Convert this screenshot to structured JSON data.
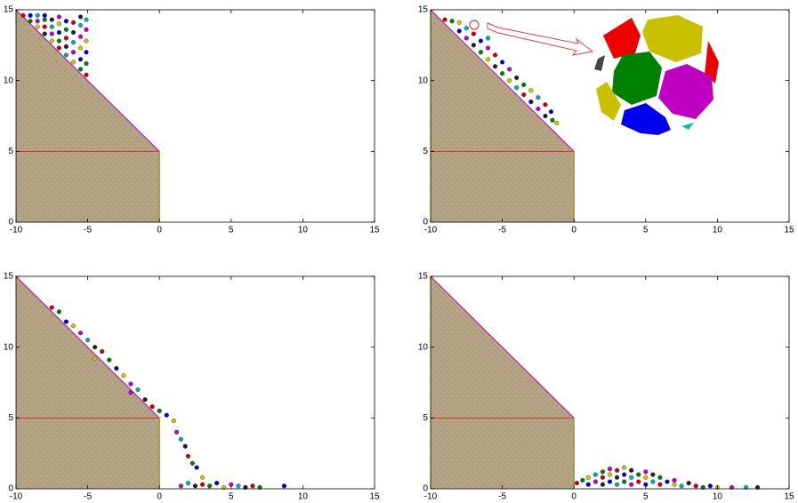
{
  "chart_data": [
    {
      "type": "scatter",
      "xlim": [
        -10,
        15
      ],
      "ylim": [
        0,
        15
      ],
      "xticks": [
        -10,
        -5,
        0,
        5,
        10,
        15
      ],
      "yticks": [
        0,
        5,
        10,
        15
      ],
      "palette": [
        "#d00000",
        "#008000",
        "#0000d0",
        "#c8c800",
        "#c000c0",
        "#00b0b0",
        "#202020"
      ],
      "ramp": {
        "x": [
          -10,
          -10,
          0,
          0
        ],
        "y": [
          0,
          15,
          5,
          0
        ],
        "color": "#b5a584"
      },
      "x": [
        -9.5,
        -9,
        -9,
        -8.5,
        -8.5,
        -8.5,
        -8,
        -8,
        -8,
        -8,
        -7.5,
        -7.5,
        -7.5,
        -7.5,
        -7,
        -7,
        -7,
        -7,
        -7,
        -6.5,
        -6.5,
        -6.5,
        -6.5,
        -6.5,
        -6,
        -6,
        -6,
        -6,
        -6,
        -5.5,
        -5.5,
        -5.5,
        -5.5,
        -5.5,
        -5.5,
        -5.1,
        -5.1,
        -5.1,
        -5.1,
        -5.1,
        -5.1
      ],
      "y": [
        14.6,
        14.2,
        14.6,
        13.8,
        14.2,
        14.6,
        13.3,
        13.8,
        14.3,
        14.6,
        12.8,
        13.3,
        13.8,
        14.3,
        12.3,
        12.8,
        13.4,
        14,
        14.5,
        11.8,
        12.4,
        13,
        13.6,
        14.2,
        11.3,
        12,
        12.7,
        13.4,
        14.1,
        10.8,
        11.5,
        12.3,
        13.1,
        13.9,
        14.5,
        10.4,
        11.2,
        12,
        12.8,
        13.6,
        14.3
      ]
    },
    {
      "type": "scatter",
      "xlim": [
        -10,
        15
      ],
      "ylim": [
        0,
        15
      ],
      "xticks": [
        -10,
        -5,
        0,
        5,
        10,
        15
      ],
      "yticks": [
        0,
        5,
        10,
        15
      ],
      "palette": [
        "#d00000",
        "#008000",
        "#0000d0",
        "#c8c800",
        "#c000c0",
        "#00b0b0",
        "#202020"
      ],
      "ramp": {
        "x": [
          -10,
          -10,
          0,
          0
        ],
        "y": [
          0,
          15,
          5,
          0
        ],
        "color": "#b5a584"
      },
      "x": [
        -9,
        -8.5,
        -8,
        -8,
        -7.5,
        -7.5,
        -7,
        -7,
        -6.5,
        -6.5,
        -6,
        -6,
        -6,
        -5.5,
        -5.5,
        -5,
        -5,
        -4.5,
        -4.5,
        -4,
        -4,
        -3.5,
        -3.5,
        -3,
        -3,
        -2.5,
        -2.5,
        -2,
        -2,
        -1.5,
        -1.6,
        -1.2
      ],
      "y": [
        14.3,
        14.2,
        13.5,
        14.1,
        13,
        13.7,
        12.5,
        13.3,
        12,
        12.8,
        11.5,
        12.3,
        13,
        11,
        11.8,
        10.5,
        11.3,
        10,
        10.8,
        9.5,
        10.2,
        9,
        9.7,
        8.5,
        9.3,
        8,
        8.8,
        7.5,
        8.3,
        7.2,
        7.8,
        7
      ]
    },
    {
      "type": "scatter",
      "xlim": [
        -10,
        15
      ],
      "ylim": [
        0,
        15
      ],
      "xticks": [
        -10,
        -5,
        0,
        5,
        10,
        15
      ],
      "yticks": [
        0,
        5,
        10,
        15
      ],
      "palette": [
        "#d00000",
        "#008000",
        "#0000d0",
        "#c8c800",
        "#c000c0",
        "#00b0b0",
        "#202020"
      ],
      "ramp": {
        "x": [
          -10,
          -10,
          0,
          0
        ],
        "y": [
          0,
          15,
          5,
          0
        ],
        "color": "#b5a584"
      },
      "x": [
        -7.5,
        -7,
        -6.5,
        -6,
        -5.5,
        -5,
        -4.5,
        -4,
        -3.5,
        -3,
        -2.5,
        -2,
        -1.5,
        -1,
        -0.5,
        0,
        0.5,
        1,
        1.2,
        1.5,
        1.8,
        2,
        2.3,
        2.6,
        3,
        1.5,
        2,
        2.5,
        3,
        3.5,
        4,
        4.5,
        5,
        5.5,
        6,
        6.5,
        7,
        8.7,
        -4.5,
        -2
      ],
      "y": [
        12.8,
        12.5,
        11.8,
        11.5,
        11,
        10.5,
        10,
        9.7,
        9.1,
        8.5,
        8,
        7.4,
        7,
        6.3,
        5.8,
        5.5,
        5.2,
        4.8,
        4,
        3.5,
        3,
        2.3,
        1.8,
        1.5,
        0.8,
        0.2,
        0.4,
        0.2,
        0.3,
        0.2,
        0.4,
        0.1,
        0.3,
        0.2,
        0.1,
        0.2,
        0.1,
        0.2,
        9.2,
        6.8
      ]
    },
    {
      "type": "scatter",
      "xlim": [
        -10,
        15
      ],
      "ylim": [
        0,
        15
      ],
      "xticks": [
        -10,
        -5,
        0,
        5,
        10,
        15
      ],
      "yticks": [
        0,
        5,
        10,
        15
      ],
      "palette": [
        "#d00000",
        "#008000",
        "#0000d0",
        "#c8c800",
        "#c000c0",
        "#00b0b0",
        "#202020"
      ],
      "ramp": {
        "x": [
          -10,
          -10,
          0,
          0
        ],
        "y": [
          0,
          15,
          5,
          0
        ],
        "color": "#b5a584"
      },
      "x": [
        0.2,
        0.6,
        1,
        1,
        1.5,
        1.5,
        2,
        2,
        2,
        2.5,
        2.5,
        2.5,
        3,
        3,
        3,
        3.5,
        3.5,
        3.5,
        4,
        4,
        4,
        4.5,
        4.5,
        5,
        5,
        5,
        5.5,
        5.5,
        6,
        6,
        6.5,
        7,
        7,
        7.5,
        8,
        8.5,
        9,
        9.5,
        10,
        11,
        12,
        12.8
      ],
      "y": [
        0.4,
        0.6,
        0.3,
        0.8,
        0.5,
        1,
        0.3,
        0.8,
        1.2,
        0.5,
        1,
        1.4,
        0.3,
        0.8,
        1.3,
        0.5,
        1,
        1.5,
        0.3,
        0.8,
        1.3,
        0.5,
        1,
        0.3,
        0.8,
        1.2,
        0.5,
        1,
        0.3,
        0.8,
        0.5,
        0.3,
        0.6,
        0.2,
        0.4,
        0.2,
        0.1,
        0.2,
        0.1,
        0.1,
        0.1,
        0.1
      ]
    }
  ]
}
